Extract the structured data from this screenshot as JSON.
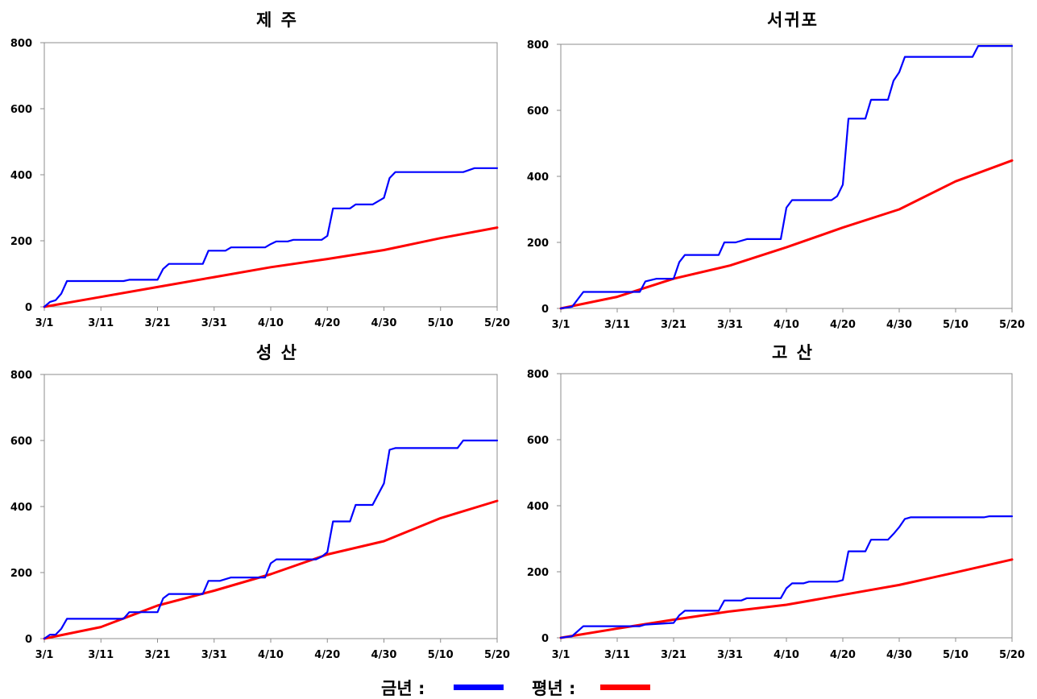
{
  "legend": {
    "current_label": "금년 :",
    "normal_label": "평년 :",
    "current_color": "#0000ff",
    "normal_color": "#ff0000"
  },
  "x_tick_labels": [
    "3/1",
    "3/11",
    "3/21",
    "3/31",
    "4/10",
    "4/20",
    "4/30",
    "5/10",
    "5/20"
  ],
  "chart_data": [
    {
      "type": "line",
      "title": "제 주",
      "xlabel": "",
      "ylabel": "",
      "x_unit": "days since 3/1",
      "xlim": [
        0,
        80
      ],
      "ylim": [
        0,
        800
      ],
      "yticks": [
        0,
        200,
        400,
        600,
        800
      ],
      "grid": false,
      "series": [
        {
          "name": "금년",
          "color": "#0000ff",
          "points": [
            [
              0,
              0
            ],
            [
              1,
              15
            ],
            [
              2,
              20
            ],
            [
              3,
              40
            ],
            [
              4,
              78
            ],
            [
              14,
              78
            ],
            [
              15,
              82
            ],
            [
              20,
              82
            ],
            [
              21,
              115
            ],
            [
              22,
              130
            ],
            [
              28,
              130
            ],
            [
              29,
              170
            ],
            [
              32,
              170
            ],
            [
              33,
              180
            ],
            [
              39,
              180
            ],
            [
              40,
              190
            ],
            [
              41,
              198
            ],
            [
              43,
              198
            ],
            [
              44,
              203
            ],
            [
              49,
              203
            ],
            [
              50,
              215
            ],
            [
              51,
              298
            ],
            [
              54,
              298
            ],
            [
              55,
              310
            ],
            [
              58,
              310
            ],
            [
              60,
              330
            ],
            [
              61,
              390
            ],
            [
              62,
              408
            ],
            [
              74,
              408
            ],
            [
              76,
              420
            ],
            [
              80,
              420
            ]
          ]
        },
        {
          "name": "평년",
          "color": "#ff0000",
          "points": [
            [
              0,
              0
            ],
            [
              10,
              30
            ],
            [
              20,
              60
            ],
            [
              30,
              90
            ],
            [
              40,
              120
            ],
            [
              50,
              145
            ],
            [
              60,
              172
            ],
            [
              70,
              208
            ],
            [
              80,
              240
            ]
          ]
        }
      ]
    },
    {
      "type": "line",
      "title": "서귀포",
      "xlabel": "",
      "ylabel": "",
      "x_unit": "days since 3/1",
      "xlim": [
        0,
        80
      ],
      "ylim": [
        0,
        800
      ],
      "yticks": [
        0,
        200,
        400,
        600,
        800
      ],
      "grid": false,
      "series": [
        {
          "name": "금년",
          "color": "#0000ff",
          "points": [
            [
              0,
              0
            ],
            [
              2,
              5
            ],
            [
              4,
              50
            ],
            [
              14,
              50
            ],
            [
              15,
              82
            ],
            [
              17,
              90
            ],
            [
              20,
              90
            ],
            [
              21,
              140
            ],
            [
              22,
              162
            ],
            [
              28,
              162
            ],
            [
              29,
              200
            ],
            [
              31,
              200
            ],
            [
              33,
              210
            ],
            [
              39,
              210
            ],
            [
              40,
              305
            ],
            [
              41,
              328
            ],
            [
              48,
              328
            ],
            [
              49,
              340
            ],
            [
              50,
              375
            ],
            [
              51,
              575
            ],
            [
              54,
              575
            ],
            [
              55,
              632
            ],
            [
              58,
              632
            ],
            [
              59,
              690
            ],
            [
              60,
              715
            ],
            [
              61,
              762
            ],
            [
              73,
              762
            ],
            [
              74,
              795
            ],
            [
              80,
              795
            ]
          ]
        },
        {
          "name": "평년",
          "color": "#ff0000",
          "points": [
            [
              0,
              0
            ],
            [
              10,
              35
            ],
            [
              20,
              90
            ],
            [
              30,
              130
            ],
            [
              40,
              185
            ],
            [
              50,
              245
            ],
            [
              60,
              300
            ],
            [
              70,
              385
            ],
            [
              80,
              448
            ]
          ]
        }
      ]
    },
    {
      "type": "line",
      "title": "성 산",
      "xlabel": "",
      "ylabel": "",
      "x_unit": "days since 3/1",
      "xlim": [
        0,
        80
      ],
      "ylim": [
        0,
        800
      ],
      "yticks": [
        0,
        200,
        400,
        600,
        800
      ],
      "grid": false,
      "series": [
        {
          "name": "금년",
          "color": "#0000ff",
          "points": [
            [
              0,
              0
            ],
            [
              1,
              12
            ],
            [
              2,
              12
            ],
            [
              3,
              30
            ],
            [
              4,
              60
            ],
            [
              14,
              60
            ],
            [
              15,
              80
            ],
            [
              20,
              80
            ],
            [
              21,
              122
            ],
            [
              22,
              135
            ],
            [
              28,
              135
            ],
            [
              29,
              175
            ],
            [
              31,
              175
            ],
            [
              33,
              185
            ],
            [
              39,
              185
            ],
            [
              40,
              228
            ],
            [
              41,
              240
            ],
            [
              48,
              240
            ],
            [
              49,
              248
            ],
            [
              50,
              262
            ],
            [
              51,
              355
            ],
            [
              54,
              355
            ],
            [
              55,
              405
            ],
            [
              58,
              405
            ],
            [
              60,
              470
            ],
            [
              61,
              572
            ],
            [
              62,
              577
            ],
            [
              73,
              577
            ],
            [
              74,
              600
            ],
            [
              80,
              600
            ]
          ]
        },
        {
          "name": "평년",
          "color": "#ff0000",
          "points": [
            [
              0,
              0
            ],
            [
              10,
              35
            ],
            [
              20,
              100
            ],
            [
              30,
              145
            ],
            [
              40,
              195
            ],
            [
              50,
              255
            ],
            [
              60,
              295
            ],
            [
              70,
              365
            ],
            [
              80,
              417
            ]
          ]
        }
      ]
    },
    {
      "type": "line",
      "title": "고 산",
      "xlabel": "",
      "ylabel": "",
      "x_unit": "days since 3/1",
      "xlim": [
        0,
        80
      ],
      "ylim": [
        0,
        800
      ],
      "yticks": [
        0,
        200,
        400,
        600,
        800
      ],
      "grid": false,
      "series": [
        {
          "name": "금년",
          "color": "#0000ff",
          "points": [
            [
              0,
              0
            ],
            [
              2,
              5
            ],
            [
              4,
              35
            ],
            [
              14,
              35
            ],
            [
              15,
              40
            ],
            [
              20,
              45
            ],
            [
              21,
              68
            ],
            [
              22,
              82
            ],
            [
              28,
              82
            ],
            [
              29,
              113
            ],
            [
              32,
              113
            ],
            [
              33,
              120
            ],
            [
              39,
              120
            ],
            [
              40,
              150
            ],
            [
              41,
              165
            ],
            [
              43,
              165
            ],
            [
              44,
              170
            ],
            [
              49,
              170
            ],
            [
              50,
              175
            ],
            [
              51,
              262
            ],
            [
              54,
              262
            ],
            [
              55,
              297
            ],
            [
              58,
              297
            ],
            [
              59,
              315
            ],
            [
              60,
              335
            ],
            [
              61,
              360
            ],
            [
              62,
              365
            ],
            [
              75,
              365
            ],
            [
              76,
              368
            ],
            [
              80,
              368
            ]
          ]
        },
        {
          "name": "평년",
          "color": "#ff0000",
          "points": [
            [
              0,
              0
            ],
            [
              10,
              28
            ],
            [
              20,
              55
            ],
            [
              30,
              80
            ],
            [
              40,
              100
            ],
            [
              50,
              130
            ],
            [
              60,
              160
            ],
            [
              70,
              198
            ],
            [
              80,
              237
            ]
          ]
        }
      ]
    }
  ]
}
